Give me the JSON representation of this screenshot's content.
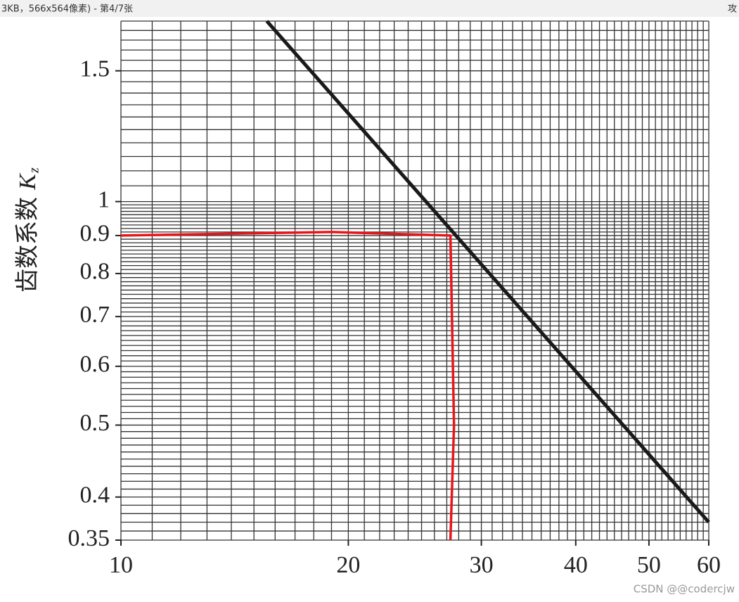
{
  "window": {
    "caption": "3KB，566x564像素) - 第4/7张",
    "side_text": "攻",
    "watermark": "CSDN @@codercjw"
  },
  "chart_data": {
    "type": "line",
    "ylabel": "齿数系数",
    "ylabel_symbol": "K",
    "ylabel_subscript": "z",
    "xscale": "log",
    "yscale": "log",
    "grid": true,
    "xlim": [
      10,
      60
    ],
    "ylim": [
      0.35,
      1.75
    ],
    "xticks": [
      10,
      20,
      30,
      40,
      50,
      60
    ],
    "yticks": [
      0.35,
      0.4,
      0.5,
      0.6,
      0.7,
      0.8,
      0.9,
      1,
      1.5
    ],
    "xgrid": [
      10,
      11,
      12,
      13,
      14,
      15,
      16,
      17,
      18,
      19,
      20,
      21,
      22,
      23,
      24,
      25,
      26,
      27,
      28,
      29,
      30,
      31,
      32,
      33,
      34,
      35,
      36,
      37,
      38,
      39,
      40,
      41,
      42,
      43,
      44,
      45,
      46,
      47,
      48,
      49,
      50,
      51,
      52,
      53,
      54,
      55,
      56,
      57,
      58,
      59,
      60
    ],
    "ygrid": [
      0.35,
      0.36,
      0.37,
      0.38,
      0.39,
      0.4,
      0.41,
      0.42,
      0.43,
      0.44,
      0.45,
      0.46,
      0.47,
      0.48,
      0.49,
      0.5,
      0.51,
      0.52,
      0.53,
      0.54,
      0.55,
      0.56,
      0.57,
      0.58,
      0.59,
      0.6,
      0.61,
      0.62,
      0.63,
      0.64,
      0.65,
      0.66,
      0.67,
      0.68,
      0.69,
      0.7,
      0.71,
      0.72,
      0.73,
      0.74,
      0.75,
      0.76,
      0.77,
      0.78,
      0.79,
      0.8,
      0.81,
      0.82,
      0.83,
      0.84,
      0.85,
      0.86,
      0.87,
      0.88,
      0.89,
      0.9,
      0.91,
      0.92,
      0.93,
      0.94,
      0.95,
      0.96,
      0.97,
      0.98,
      0.99,
      1,
      1.05,
      1.1,
      1.15,
      1.2,
      1.25,
      1.3,
      1.35,
      1.4,
      1.45,
      1.5,
      1.55,
      1.6,
      1.65,
      1.7,
      1.75
    ],
    "series": [
      {
        "color": "#1a1a1a",
        "x": [
          15.6,
          60
        ],
        "values": [
          1.75,
          0.37
        ]
      },
      {
        "color": "#e8151b",
        "x": [
          10,
          19,
          27.3,
          27.6,
          27.3
        ],
        "values": [
          0.9,
          0.91,
          0.9,
          0.5,
          0.35
        ]
      }
    ]
  }
}
